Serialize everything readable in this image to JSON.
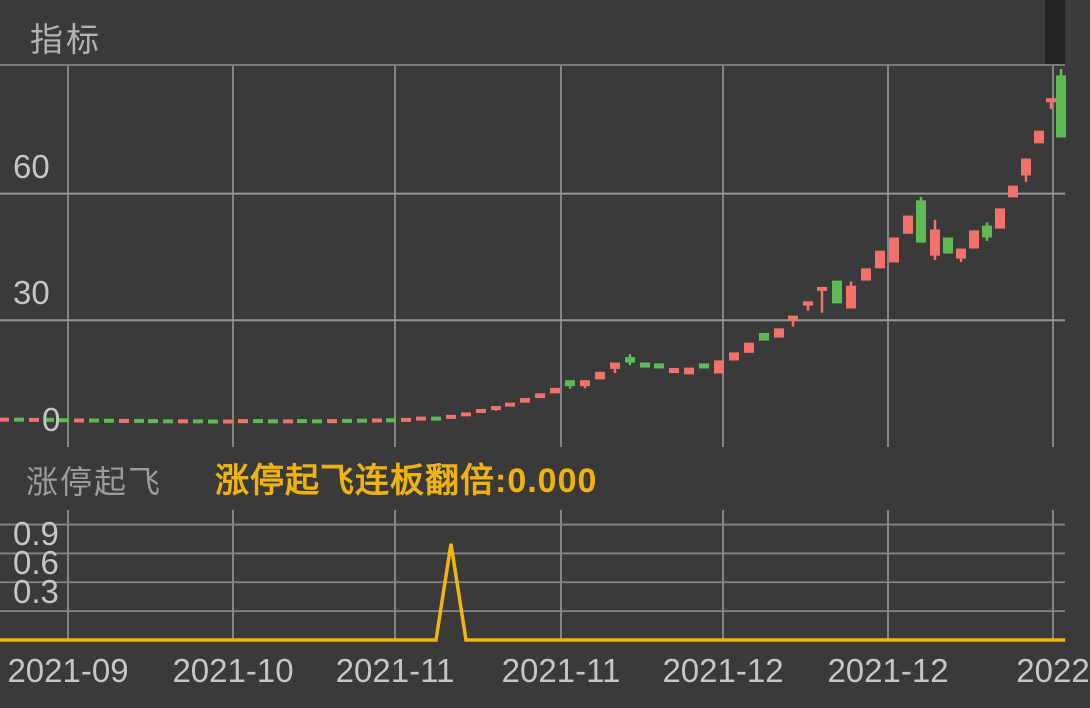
{
  "header": {
    "title": "指标"
  },
  "sub_header": {
    "indicator_name": "涨停起飞",
    "indicator_value_label": "涨停起飞连板翻倍:0.000"
  },
  "colors": {
    "background": "#3a3a3a",
    "corner_shade": "#242424",
    "divider": "#7b7b7b",
    "gridline": "#858585",
    "candle_up_red": "#f2716b",
    "candle_down_green": "#5fba56",
    "indicator_yellow": "#f1b50f",
    "axis_text": "#c6c6c6",
    "header_text": "#b3b3b3",
    "sub_title_text": "#9c9c9c"
  },
  "chart_data": {
    "type": "candlestick+line",
    "x_ticks": [
      {
        "x": 68,
        "label": "2021-09"
      },
      {
        "x": 233,
        "label": "2021-10"
      },
      {
        "x": 395,
        "label": "2021-11"
      },
      {
        "x": 561,
        "label": "2021-11"
      },
      {
        "x": 723,
        "label": "2021-12"
      },
      {
        "x": 888,
        "label": "2021-12"
      },
      {
        "x": 1053,
        "label": "2022"
      }
    ],
    "main": {
      "type": "candlestick",
      "ylim": [
        0,
        90.5
      ],
      "grid_values": [
        60,
        30
      ],
      "y_ticks": [
        {
          "value": 60,
          "label": "60",
          "x": 13
        },
        {
          "value": 30,
          "label": "30",
          "x": 13
        },
        {
          "value": 0,
          "label": "0",
          "x": 42
        }
      ],
      "candles_format": [
        "x_px",
        "open",
        "close",
        "low",
        "high"
      ],
      "candles": [
        [
          4,
          6.7,
          6.95,
          null,
          null
        ],
        [
          19,
          6.95,
          6.7,
          null,
          null
        ],
        [
          34,
          6.65,
          6.9,
          null,
          null
        ],
        [
          49,
          6.9,
          6.65,
          null,
          null
        ],
        [
          64,
          6.8,
          6.55,
          null,
          null
        ],
        [
          79,
          6.5,
          6.75,
          null,
          null
        ],
        [
          94,
          6.75,
          6.5,
          null,
          null
        ],
        [
          109,
          6.7,
          6.45,
          null,
          null
        ],
        [
          124,
          6.4,
          6.65,
          null,
          null
        ],
        [
          139,
          6.65,
          6.4,
          null,
          null
        ],
        [
          153,
          6.6,
          6.35,
          null,
          null
        ],
        [
          168,
          6.55,
          6.3,
          null,
          null
        ],
        [
          183,
          6.3,
          6.55,
          null,
          null
        ],
        [
          198,
          6.55,
          6.3,
          null,
          null
        ],
        [
          213,
          6.5,
          6.25,
          null,
          null
        ],
        [
          228,
          6.25,
          6.5,
          null,
          null
        ],
        [
          243,
          6.35,
          6.6,
          null,
          null
        ],
        [
          258,
          6.6,
          6.35,
          null,
          null
        ],
        [
          273,
          6.55,
          6.3,
          null,
          null
        ],
        [
          288,
          6.3,
          6.55,
          null,
          null
        ],
        [
          302,
          6.6,
          6.35,
          null,
          null
        ],
        [
          317,
          6.55,
          6.3,
          null,
          null
        ],
        [
          332,
          6.35,
          6.6,
          null,
          null
        ],
        [
          347,
          6.65,
          6.4,
          null,
          null
        ],
        [
          362,
          6.7,
          6.45,
          null,
          null
        ],
        [
          377,
          6.5,
          6.75,
          null,
          null
        ],
        [
          391,
          6.8,
          6.55,
          null,
          null
        ],
        [
          406,
          6.6,
          6.9,
          null,
          null
        ],
        [
          421,
          6.7,
          7.2,
          null,
          null
        ],
        [
          436,
          7.2,
          6.9,
          null,
          null
        ],
        [
          451,
          6.9,
          7.6,
          null,
          null
        ],
        [
          466,
          7.6,
          8.2,
          null,
          null
        ],
        [
          481,
          8.2,
          9.0,
          null,
          null
        ],
        [
          496,
          9.0,
          9.7,
          8.6,
          null
        ],
        [
          510,
          9.7,
          10.5,
          null,
          null
        ],
        [
          525,
          10.5,
          11.6,
          null,
          null
        ],
        [
          540,
          11.6,
          12.7,
          null,
          null
        ],
        [
          555,
          12.7,
          14.0,
          null,
          null
        ],
        [
          570,
          15.8,
          14.4,
          13.8,
          null
        ],
        [
          585,
          14.4,
          15.8,
          13.9,
          null
        ],
        [
          600,
          16.0,
          17.8,
          null,
          null
        ],
        [
          615,
          18.5,
          20.0,
          17.5,
          null
        ],
        [
          630,
          21.3,
          20.0,
          19.4,
          22.0
        ],
        [
          645,
          20.0,
          18.8,
          null,
          null
        ],
        [
          659,
          19.8,
          18.6,
          null,
          null
        ],
        [
          674,
          17.5,
          18.7,
          null,
          null
        ],
        [
          689,
          17.2,
          18.8,
          null,
          null
        ],
        [
          704,
          19.8,
          18.6,
          null,
          null
        ],
        [
          719,
          17.4,
          20.5,
          null,
          null
        ],
        [
          734,
          20.5,
          22.4,
          null,
          null
        ],
        [
          749,
          22.3,
          24.7,
          null,
          null
        ],
        [
          764,
          27.0,
          25.2,
          null,
          null
        ],
        [
          779,
          25.9,
          28.1,
          null,
          null
        ],
        [
          793,
          29.8,
          31.1,
          28.5,
          null
        ],
        [
          808,
          33.5,
          34.5,
          32.3,
          null
        ],
        [
          822,
          37.0,
          37.9,
          31.8,
          null
        ],
        [
          837,
          39.4,
          34.0,
          null,
          null
        ],
        [
          851,
          32.8,
          38.2,
          null,
          39.2
        ],
        [
          866,
          39.4,
          42.3,
          null,
          null
        ],
        [
          880,
          42.3,
          46.5,
          null,
          null
        ],
        [
          894,
          43.7,
          49.6,
          null,
          null
        ],
        [
          908,
          50.5,
          54.8,
          null,
          null
        ],
        [
          921,
          58.4,
          48.4,
          null,
          59.2
        ],
        [
          935,
          45.3,
          51.5,
          44.3,
          53.8
        ],
        [
          948,
          49.6,
          45.8,
          null,
          null
        ],
        [
          961,
          44.6,
          47.0,
          43.8,
          null
        ],
        [
          974,
          47.0,
          51.3,
          null,
          null
        ],
        [
          987,
          52.4,
          49.6,
          48.8,
          53.2
        ],
        [
          1000,
          51.7,
          56.5,
          null,
          null
        ],
        [
          1013,
          59.1,
          61.9,
          null,
          null
        ],
        [
          1026,
          64.3,
          68.3,
          62.8,
          null
        ],
        [
          1039,
          71.9,
          74.9,
          null,
          null
        ],
        [
          1051,
          81.6,
          82.6,
          80.0,
          null
        ],
        [
          1061,
          88.0,
          73.3,
          null,
          89.5
        ]
      ]
    },
    "sub": {
      "type": "line",
      "name": "涨停起飞连板翻倍",
      "current_value": "0.000",
      "ylim": [
        0,
        1.37
      ],
      "grid_values": [
        1.2,
        0.9,
        0.6,
        0.3
      ],
      "y_ticks": [
        {
          "value": 0.9,
          "label": "0.9",
          "x": 13
        },
        {
          "value": 0.6,
          "label": "0.6",
          "x": 13
        },
        {
          "value": 0.3,
          "label": "0.3",
          "x": 13
        }
      ],
      "points_format": [
        "x_px",
        "value"
      ],
      "points": [
        [
          0,
          0
        ],
        [
          436,
          0
        ],
        [
          451,
          1.0
        ],
        [
          466,
          0
        ],
        [
          1065,
          0
        ]
      ]
    }
  }
}
